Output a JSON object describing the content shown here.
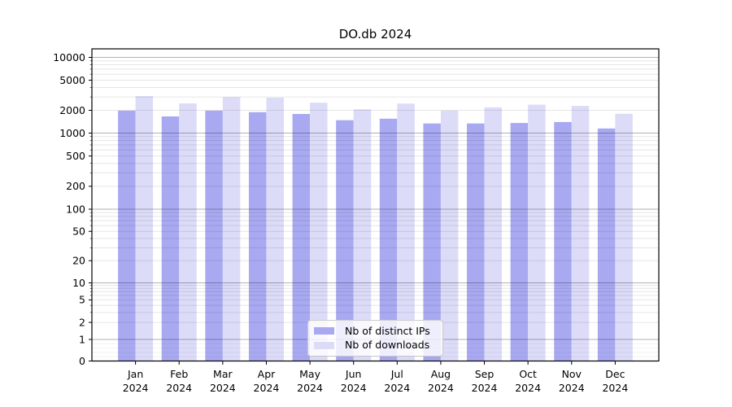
{
  "chart_data": {
    "type": "bar",
    "title": "DO.db 2024",
    "y_scale": "symlog",
    "ylim": [
      0,
      13000
    ],
    "grid": "major and minor horizontal gridlines, drawn over bars",
    "legend_position": "lower center",
    "x_categories": [
      "Jan",
      "Feb",
      "Mar",
      "Apr",
      "May",
      "Jun",
      "Jul",
      "Aug",
      "Sep",
      "Oct",
      "Nov",
      "Dec"
    ],
    "x_year_label": "2024",
    "y_ticks": [
      0,
      1,
      2,
      5,
      10,
      20,
      50,
      100,
      200,
      500,
      1000,
      2000,
      5000,
      10000
    ],
    "series": [
      {
        "key": "distinct-ips",
        "name": "Nb of distinct IPs",
        "color": "#a9a9f2",
        "values": [
          1980,
          1660,
          1980,
          1890,
          1790,
          1480,
          1550,
          1340,
          1340,
          1360,
          1400,
          1150
        ]
      },
      {
        "key": "downloads",
        "name": "Nb of downloads",
        "color": "#dcdcf8",
        "values": [
          3080,
          2470,
          2990,
          2930,
          2520,
          2060,
          2450,
          1980,
          2190,
          2370,
          2290,
          1800
        ]
      }
    ]
  },
  "colors": {
    "grid_major": "rgba(0,0,0,0.30)",
    "grid_minor": "rgba(0,0,0,0.10)",
    "grid_faint": "rgba(0,0,0,0.05)",
    "spine": "#000000",
    "tick": "#000000",
    "text": "#000000",
    "legend_bg": "rgba(255,255,255,0.8)",
    "legend_border": "#cccccc"
  }
}
